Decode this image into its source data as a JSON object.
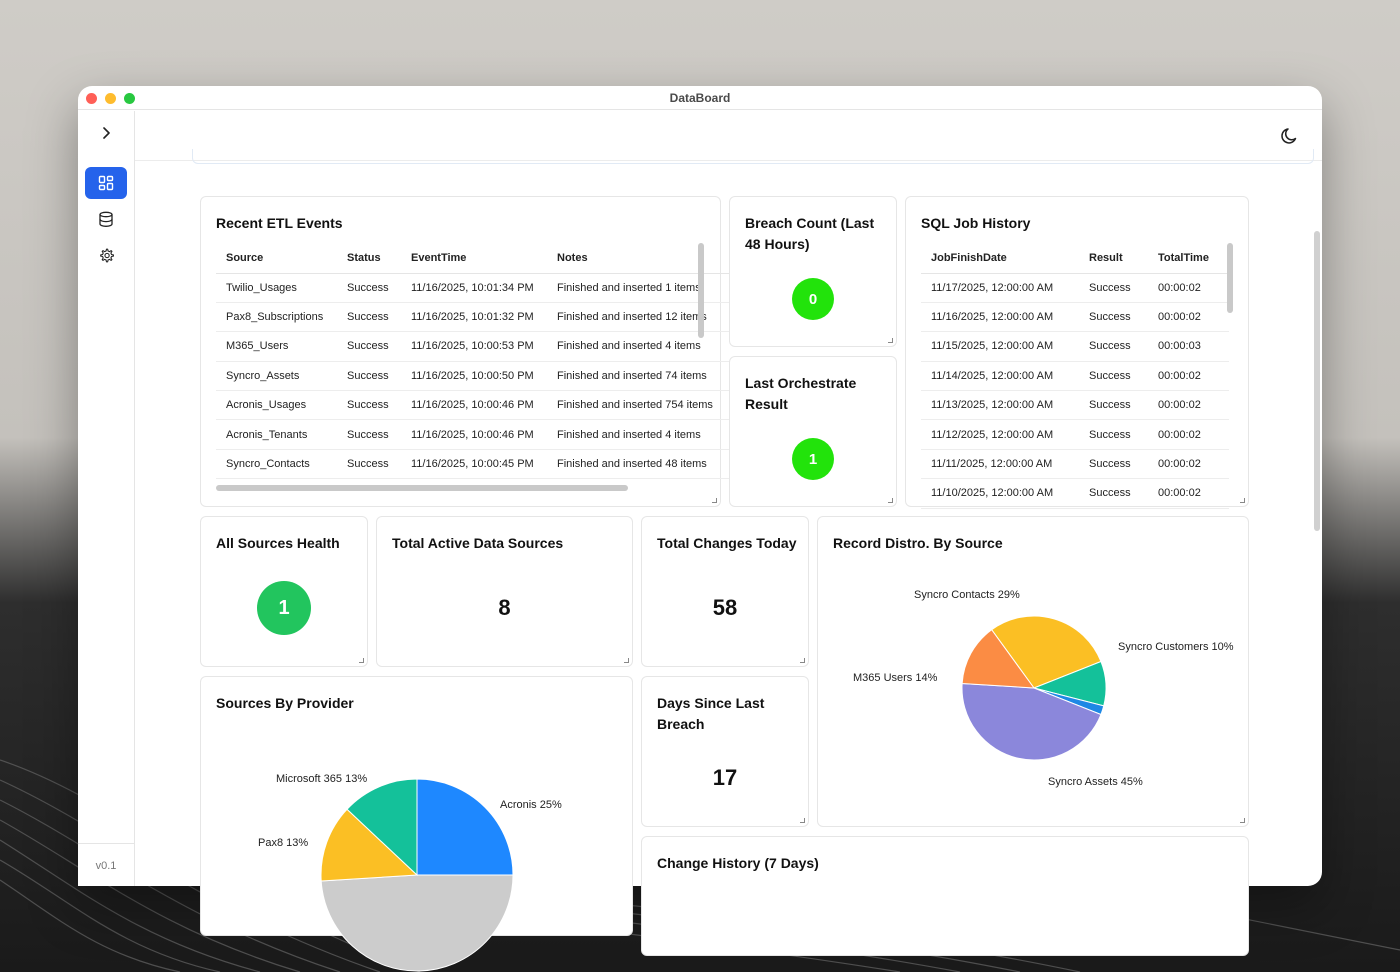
{
  "window": {
    "title": "DataBoard"
  },
  "sidebar": {
    "toggle_icon": "chevron-right-icon",
    "items": [
      {
        "name": "dashboard",
        "icon": "dashboard-grid-icon",
        "active": true
      },
      {
        "name": "database",
        "icon": "database-icon",
        "active": false
      },
      {
        "name": "settings",
        "icon": "gear-icon",
        "active": false
      }
    ],
    "version": "v0.1"
  },
  "topbar": {
    "theme_icon": "moon-icon"
  },
  "colors": {
    "accent": "#2563eb",
    "badge_bright": "#22e30b",
    "badge_green": "#22c55e"
  },
  "etl_events": {
    "title": "Recent ETL Events",
    "columns": [
      "Source",
      "Status",
      "EventTime",
      "Notes"
    ],
    "rows": [
      [
        "Twilio_Usages",
        "Success",
        "11/16/2025, 10:01:34 PM",
        "Finished and inserted 1 items"
      ],
      [
        "Pax8_Subscriptions",
        "Success",
        "11/16/2025, 10:01:32 PM",
        "Finished and inserted 12 items"
      ],
      [
        "M365_Users",
        "Success",
        "11/16/2025, 10:00:53 PM",
        "Finished and inserted 4 items"
      ],
      [
        "Syncro_Assets",
        "Success",
        "11/16/2025, 10:00:50 PM",
        "Finished and inserted 74 items"
      ],
      [
        "Acronis_Usages",
        "Success",
        "11/16/2025, 10:00:46 PM",
        "Finished and inserted 754 items"
      ],
      [
        "Acronis_Tenants",
        "Success",
        "11/16/2025, 10:00:46 PM",
        "Finished and inserted 4 items"
      ],
      [
        "Syncro_Contacts",
        "Success",
        "11/16/2025, 10:00:45 PM",
        "Finished and inserted 48 items"
      ]
    ]
  },
  "breach_count": {
    "title": "Breach Count (Last 48 Hours)",
    "value": "0"
  },
  "last_orchestrate": {
    "title": "Last Orchestrate Result",
    "value": "1"
  },
  "sql_jobs": {
    "title": "SQL Job History",
    "columns": [
      "JobFinishDate",
      "Result",
      "TotalTime"
    ],
    "rows": [
      [
        "11/17/2025, 12:00:00 AM",
        "Success",
        "00:00:02"
      ],
      [
        "11/16/2025, 12:00:00 AM",
        "Success",
        "00:00:02"
      ],
      [
        "11/15/2025, 12:00:00 AM",
        "Success",
        "00:00:03"
      ],
      [
        "11/14/2025, 12:00:00 AM",
        "Success",
        "00:00:02"
      ],
      [
        "11/13/2025, 12:00:00 AM",
        "Success",
        "00:00:02"
      ],
      [
        "11/12/2025, 12:00:00 AM",
        "Success",
        "00:00:02"
      ],
      [
        "11/11/2025, 12:00:00 AM",
        "Success",
        "00:00:02"
      ],
      [
        "11/10/2025, 12:00:00 AM",
        "Success",
        "00:00:02"
      ]
    ]
  },
  "all_sources_health": {
    "title": "All Sources Health",
    "value": "1"
  },
  "total_active_sources": {
    "title": "Total Active Data Sources",
    "value": "8"
  },
  "total_changes_today": {
    "title": "Total Changes Today",
    "value": "58"
  },
  "days_since_breach": {
    "title": "Days Since Last Breach",
    "value": "17"
  },
  "change_history": {
    "title": "Change History (7 Days)"
  },
  "record_distro": {
    "title": "Record Distro. By Source"
  },
  "sources_by_provider": {
    "title": "Sources By Provider"
  },
  "chart_data": [
    {
      "type": "pie",
      "title": "Record Distro. By Source",
      "slices": [
        {
          "label": "Syncro Contacts",
          "percent": 29,
          "color": "#fbbf24",
          "display": "Syncro Contacts 29%"
        },
        {
          "label": "Syncro Customers",
          "percent": 10,
          "color": "#14c19a",
          "display": "Syncro Customers 10%"
        },
        {
          "label": "",
          "percent": 2,
          "color": "#1e88e5",
          "display": ""
        },
        {
          "label": "Syncro Assets",
          "percent": 45,
          "color": "#8b87db",
          "display": "Syncro Assets 45%"
        },
        {
          "label": "M365 Users",
          "percent": 14,
          "color": "#fb8c44",
          "display": "M365 Users 14%"
        }
      ]
    },
    {
      "type": "pie",
      "title": "Sources By Provider",
      "slices": [
        {
          "label": "Acronis",
          "percent": 25,
          "color": "#1e88ff",
          "display": "Acronis 25%"
        },
        {
          "label": "",
          "percent": 49,
          "color": "#cccccc",
          "display": ""
        },
        {
          "label": "Pax8",
          "percent": 13,
          "color": "#fbbf24",
          "display": "Pax8 13%"
        },
        {
          "label": "Microsoft 365",
          "percent": 13,
          "color": "#14c19a",
          "display": "Microsoft 365 13%"
        }
      ]
    }
  ]
}
